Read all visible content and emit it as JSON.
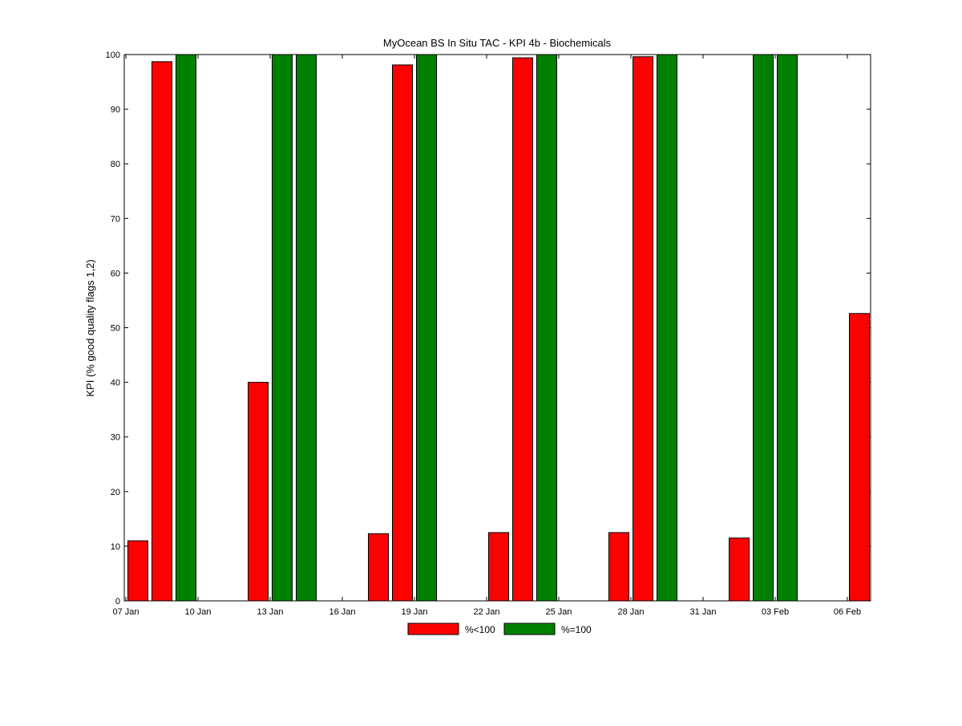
{
  "chart_data": {
    "type": "bar",
    "title": "MyOcean  BS In Situ TAC - KPI 4b - Biochemicals",
    "xlabel": "",
    "ylabel": "KPI (% good quality flags 1,2)",
    "ylim": [
      0,
      100
    ],
    "y_ticks": [
      0,
      10,
      20,
      30,
      40,
      50,
      60,
      70,
      80,
      90,
      100
    ],
    "x_ticks": [
      "07 Jan",
      "10 Jan",
      "13 Jan",
      "16 Jan",
      "19 Jan",
      "22 Jan",
      "25 Jan",
      "28 Jan",
      "31 Jan",
      "03 Feb",
      "06 Feb"
    ],
    "grid": false,
    "legend_position": "bottom-center",
    "colors": {
      "lt100": "#ff0000",
      "eq100": "#008000"
    },
    "series": [
      {
        "name": "%<100",
        "color": "#ff0000",
        "points": [
          {
            "date": "07 Jan",
            "value": 11
          },
          {
            "date": "08 Jan",
            "value": 98.7
          },
          {
            "date": "12 Jan",
            "value": 40
          },
          {
            "date": "17 Jan",
            "value": 12.3
          },
          {
            "date": "18 Jan",
            "value": 98.1
          },
          {
            "date": "22 Jan",
            "value": 12.5
          },
          {
            "date": "23 Jan",
            "value": 99.4
          },
          {
            "date": "27 Jan",
            "value": 12.5
          },
          {
            "date": "28 Jan",
            "value": 99.6
          },
          {
            "date": "01 Feb",
            "value": 11.5
          },
          {
            "date": "06 Feb",
            "value": 52.6
          }
        ]
      },
      {
        "name": "%=100",
        "color": "#008000",
        "points": [
          {
            "date": "09 Jan",
            "value": 100
          },
          {
            "date": "13 Jan",
            "value": 100
          },
          {
            "date": "14 Jan",
            "value": 100
          },
          {
            "date": "19 Jan",
            "value": 100
          },
          {
            "date": "24 Jan",
            "value": 100
          },
          {
            "date": "29 Jan",
            "value": 100
          },
          {
            "date": "02 Feb",
            "value": 100
          },
          {
            "date": "03 Feb",
            "value": 100
          }
        ]
      }
    ]
  }
}
